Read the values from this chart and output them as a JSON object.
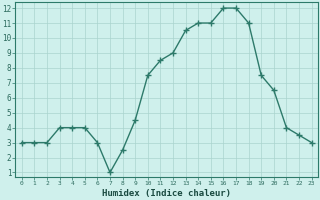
{
  "x": [
    0,
    1,
    2,
    3,
    4,
    5,
    6,
    7,
    8,
    9,
    10,
    11,
    12,
    13,
    14,
    15,
    16,
    17,
    18,
    19,
    20,
    21,
    22,
    23
  ],
  "y": [
    3.0,
    3.0,
    3.0,
    4.0,
    4.0,
    4.0,
    3.0,
    1.0,
    2.5,
    4.5,
    7.5,
    8.5,
    9.0,
    10.5,
    11.0,
    11.0,
    12.0,
    12.0,
    11.0,
    7.5,
    6.5,
    4.0,
    3.5,
    3.0
  ],
  "xlabel": "Humidex (Indice chaleur)",
  "line_color": "#2d7a6a",
  "marker": "+",
  "marker_color": "#2d7a6a",
  "bg_color": "#cff0ec",
  "grid_color": "#aad4ce",
  "tick_label_color": "#2d6b5e",
  "xlabel_color": "#1a4a40",
  "ylim": [
    1,
    12
  ],
  "xlim": [
    -0.5,
    23.5
  ],
  "yticks": [
    1,
    2,
    3,
    4,
    5,
    6,
    7,
    8,
    9,
    10,
    11,
    12
  ],
  "xticks": [
    0,
    1,
    2,
    3,
    4,
    5,
    6,
    7,
    8,
    9,
    10,
    11,
    12,
    13,
    14,
    15,
    16,
    17,
    18,
    19,
    20,
    21,
    22,
    23
  ],
  "xtick_labels": [
    "0",
    "1",
    "2",
    "3",
    "4",
    "5",
    "6",
    "7",
    "8",
    "9",
    "10",
    "11",
    "12",
    "13",
    "14",
    "15",
    "16",
    "17",
    "18",
    "19",
    "20",
    "21",
    "22",
    "23"
  ],
  "line_width": 1.0,
  "marker_size": 4
}
